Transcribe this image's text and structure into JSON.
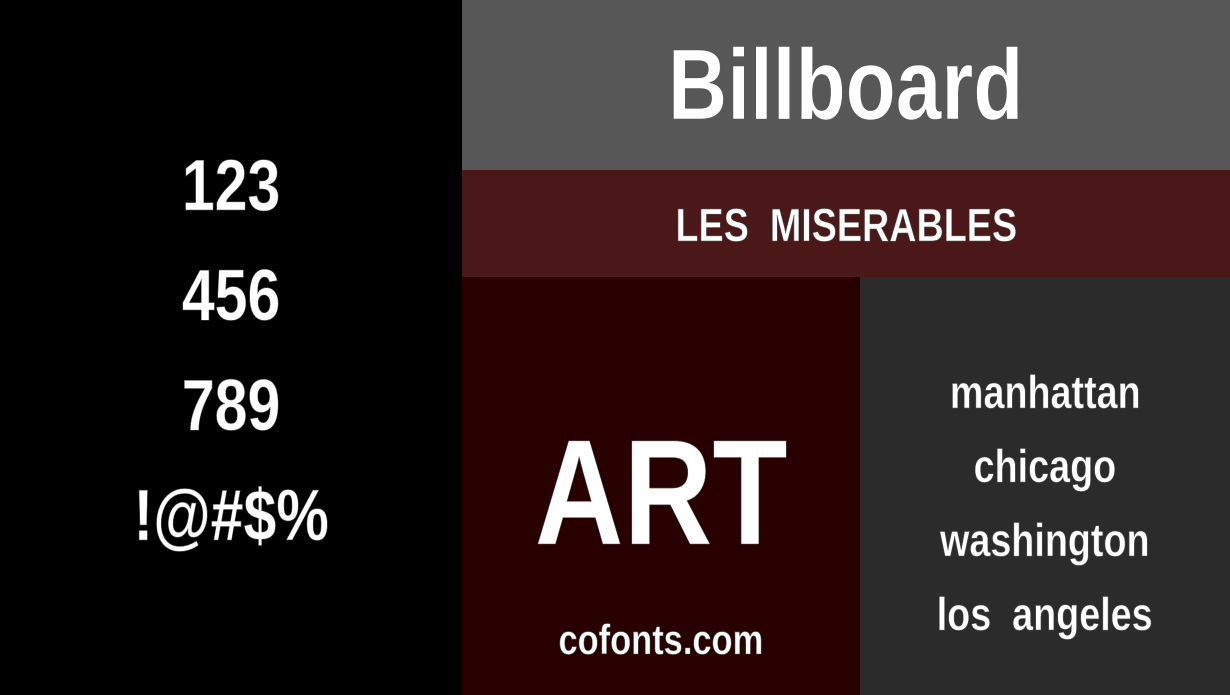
{
  "left_panel": {
    "lines": [
      "123",
      "456",
      "789",
      "!@#$%"
    ]
  },
  "title": "Billboard",
  "band": "LES  MISERABLES",
  "art": {
    "word": "ART",
    "site": "cofonts.com"
  },
  "cities": [
    "manhattan",
    "chicago",
    "washington",
    "los  angeles"
  ],
  "colors": {
    "left": "#000000",
    "top": "#575757",
    "band": "#4a1818",
    "art": "#280000",
    "cities": "#2b2b2b",
    "text": "#ffffff"
  }
}
